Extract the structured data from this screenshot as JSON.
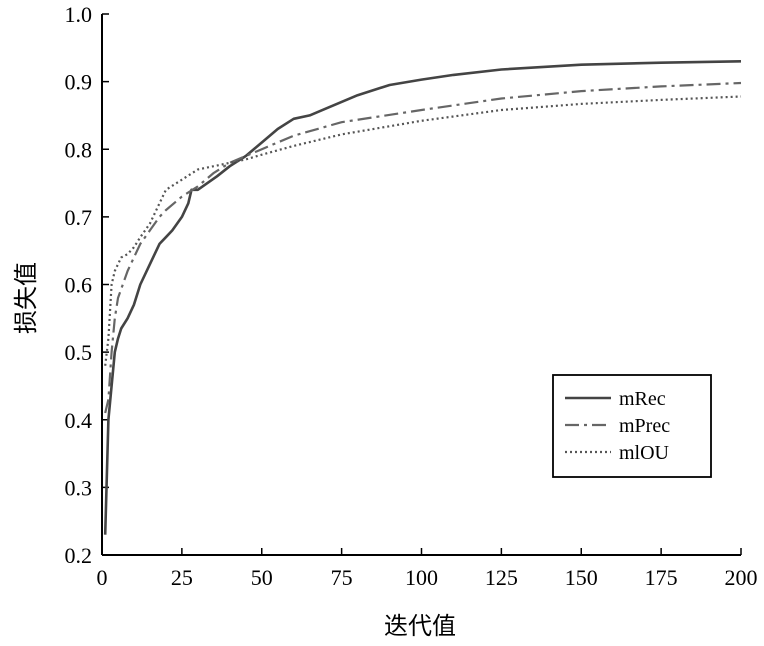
{
  "chart_data": {
    "type": "line",
    "title": "",
    "xlabel": "迭代值",
    "ylabel": "损失值",
    "xlim": [
      0,
      200
    ],
    "ylim": [
      0.2,
      1.0
    ],
    "xticks": [
      "0",
      "25",
      "50",
      "75",
      "100",
      "125",
      "150",
      "175",
      "200"
    ],
    "yticks": [
      "0.2",
      "0.3",
      "0.4",
      "0.5",
      "0.6",
      "0.7",
      "0.8",
      "0.9",
      "1.0"
    ],
    "grid": false,
    "legend_position": "right",
    "series": [
      {
        "name": "mRec",
        "style": "solid",
        "color": "#444444",
        "x": [
          1,
          2,
          3,
          4,
          5,
          6,
          8,
          10,
          12,
          15,
          18,
          20,
          22,
          25,
          27,
          28,
          30,
          33,
          36,
          40,
          45,
          50,
          55,
          60,
          65,
          70,
          75,
          80,
          90,
          100,
          110,
          125,
          150,
          175,
          200
        ],
        "y": [
          0.23,
          0.4,
          0.45,
          0.5,
          0.52,
          0.535,
          0.55,
          0.57,
          0.6,
          0.63,
          0.66,
          0.67,
          0.68,
          0.7,
          0.72,
          0.74,
          0.74,
          0.75,
          0.76,
          0.775,
          0.79,
          0.81,
          0.83,
          0.845,
          0.85,
          0.86,
          0.87,
          0.88,
          0.895,
          0.903,
          0.91,
          0.918,
          0.925,
          0.928,
          0.93
        ]
      },
      {
        "name": "mPrec",
        "style": "dashdot",
        "color": "#666666",
        "x": [
          1,
          2,
          3,
          4,
          5,
          8,
          10,
          12,
          15,
          18,
          20,
          25,
          30,
          35,
          40,
          45,
          50,
          60,
          75,
          100,
          125,
          150,
          175,
          200
        ],
        "y": [
          0.41,
          0.43,
          0.5,
          0.55,
          0.58,
          0.62,
          0.64,
          0.66,
          0.68,
          0.7,
          0.71,
          0.73,
          0.745,
          0.765,
          0.78,
          0.79,
          0.8,
          0.82,
          0.84,
          0.858,
          0.875,
          0.886,
          0.893,
          0.898
        ]
      },
      {
        "name": "mlOU",
        "style": "dotted",
        "color": "#555555",
        "x": [
          1,
          2,
          3,
          4,
          5,
          6,
          8,
          10,
          12,
          15,
          18,
          20,
          25,
          30,
          35,
          40,
          45,
          50,
          60,
          75,
          100,
          125,
          150,
          175,
          200
        ],
        "y": [
          0.48,
          0.52,
          0.6,
          0.62,
          0.63,
          0.64,
          0.645,
          0.655,
          0.67,
          0.69,
          0.72,
          0.74,
          0.755,
          0.77,
          0.775,
          0.78,
          0.785,
          0.792,
          0.805,
          0.822,
          0.842,
          0.858,
          0.867,
          0.873,
          0.878
        ]
      }
    ]
  }
}
